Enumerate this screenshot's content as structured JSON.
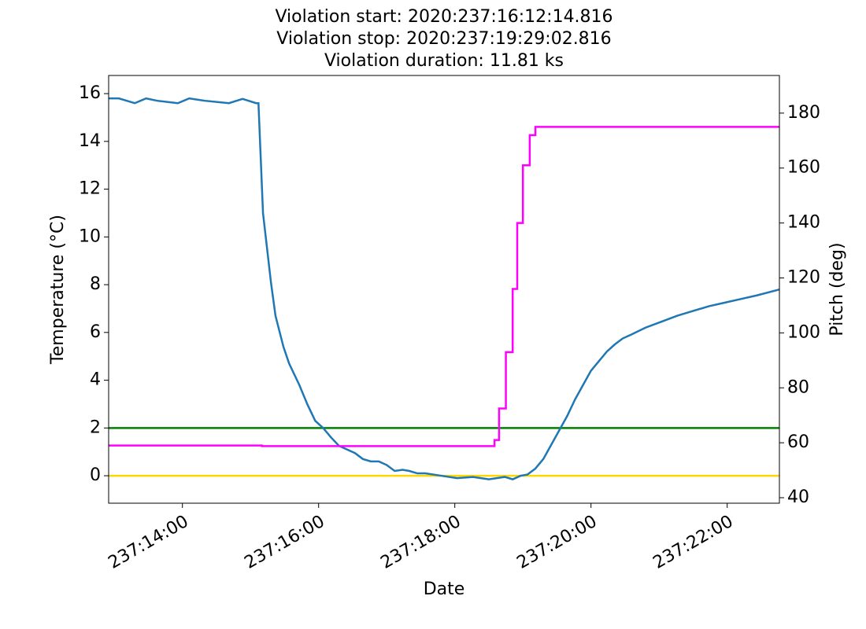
{
  "chart_data": {
    "type": "line",
    "title": [
      "Violation start: 2020:237:16:12:14.816",
      "Violation stop: 2020:237:19:29:02.816",
      "Violation duration: 11.81 ks"
    ],
    "xlabel": "Date",
    "ylabel": "Temperature (°C)",
    "y2label": "Pitch (deg)",
    "xlim": [
      "237:12:55",
      "237:22:46"
    ],
    "xticks": [
      "237:14:00",
      "237:16:00",
      "237:18:00",
      "237:20:00",
      "237:22:00"
    ],
    "ylim": [
      -1.15,
      16.76
    ],
    "yticks": [
      0,
      2,
      4,
      6,
      8,
      10,
      12,
      14,
      16
    ],
    "y2lim": [
      38,
      193.7
    ],
    "y2ticks": [
      40,
      60,
      80,
      100,
      120,
      140,
      160,
      180
    ],
    "series": [
      {
        "color": "#1f77b4",
        "x": [
          "237:12:55",
          "237:13:04",
          "237:13:18",
          "237:13:28",
          "237:13:38",
          "237:13:56",
          "237:14:06",
          "237:14:20",
          "237:14:41",
          "237:14:53",
          "237:15:05",
          "237:15:07",
          "237:15:11",
          "237:15:18",
          "237:15:22",
          "237:15:29",
          "237:15:34",
          "237:15:43",
          "237:15:50",
          "237:15:57",
          "237:16:04",
          "237:16:11",
          "237:16:18",
          "237:16:25",
          "237:16:32",
          "237:16:39",
          "237:16:46",
          "237:16:53",
          "237:17:00",
          "237:17:07",
          "237:17:14",
          "237:17:20",
          "237:17:27",
          "237:17:34",
          "237:17:48",
          "237:18:02",
          "237:18:16",
          "237:18:30",
          "237:18:44",
          "237:18:51",
          "237:18:58",
          "237:19:04",
          "237:19:11",
          "237:19:18",
          "237:19:25",
          "237:19:32",
          "237:19:39",
          "237:19:46",
          "237:19:53",
          "237:20:00",
          "237:20:07",
          "237:20:14",
          "237:20:21",
          "237:20:28",
          "237:20:35",
          "237:20:48",
          "237:21:02",
          "237:21:16",
          "237:21:30",
          "237:21:44",
          "237:21:58",
          "237:22:12",
          "237:22:26",
          "237:22:46"
        ],
        "values": [
          15.8,
          15.8,
          15.6,
          15.8,
          15.7,
          15.6,
          15.8,
          15.7,
          15.6,
          15.78,
          15.6,
          15.6,
          11,
          8.1,
          6.7,
          5.4,
          4.7,
          3.8,
          3.0,
          2.3,
          2.0,
          1.6,
          1.25,
          1.1,
          0.95,
          0.7,
          0.6,
          0.6,
          0.45,
          0.2,
          0.25,
          0.2,
          0.1,
          0.1,
          0,
          -0.1,
          -0.05,
          -0.15,
          -0.05,
          -0.15,
          0,
          0.05,
          0.3,
          0.7,
          1.3,
          1.9,
          2.5,
          3.2,
          3.8,
          4.4,
          4.8,
          5.2,
          5.5,
          5.75,
          5.9,
          6.2,
          6.45,
          6.7,
          6.9,
          7.1,
          7.25,
          7.4,
          7.55,
          7.8
        ]
      },
      {
        "color": "#ff00ff",
        "axis": "y2",
        "step": true,
        "x": [
          "237:12:55",
          "237:15:10",
          "237:18:35",
          "237:18:39",
          "237:18:45",
          "237:18:51",
          "237:18:55",
          "237:19:00",
          "237:19:06",
          "237:19:11",
          "237:22:46"
        ],
        "values": [
          59,
          58.8,
          61,
          72.5,
          93,
          116,
          140,
          161,
          172,
          175,
          175
        ]
      }
    ],
    "hlines": [
      {
        "value": 2,
        "color": "#008000"
      },
      {
        "value": 0,
        "color": "#ffd700"
      }
    ]
  }
}
